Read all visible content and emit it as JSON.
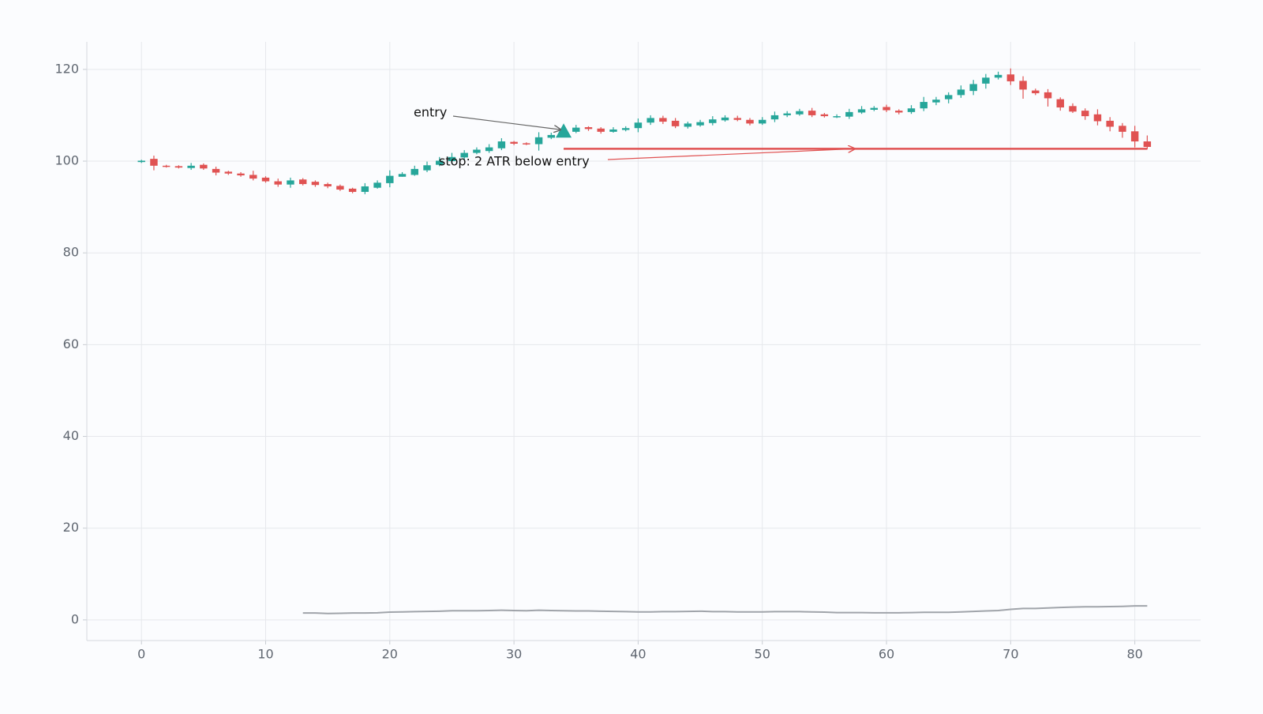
{
  "chart_data": {
    "type": "candlestick",
    "x": [
      0,
      1,
      2,
      3,
      4,
      5,
      6,
      7,
      8,
      9,
      10,
      11,
      12,
      13,
      14,
      15,
      16,
      17,
      18,
      19,
      20,
      21,
      22,
      23,
      24,
      25,
      26,
      27,
      28,
      29,
      30,
      31,
      32,
      33,
      34,
      35,
      36,
      37,
      38,
      39,
      40,
      41,
      42,
      43,
      44,
      45,
      46,
      47,
      48,
      49,
      50,
      51,
      52,
      53,
      54,
      55,
      56,
      57,
      58,
      59,
      60,
      61,
      62,
      63,
      64,
      65,
      66,
      67,
      68,
      69,
      70,
      71,
      72,
      73,
      74,
      75,
      76,
      77,
      78,
      79,
      80,
      81
    ],
    "open": [
      99.8,
      100.5,
      99.0,
      98.9,
      98.5,
      99.2,
      98.3,
      97.7,
      97.3,
      97.0,
      96.4,
      95.6,
      94.9,
      96.0,
      95.5,
      95.0,
      94.6,
      94.0,
      93.3,
      94.2,
      95.2,
      96.6,
      97.0,
      98.0,
      99.2,
      100.0,
      100.8,
      101.8,
      102.2,
      102.8,
      104.2,
      103.9,
      103.7,
      105.1,
      105.8,
      106.4,
      107.4,
      107.1,
      106.4,
      106.8,
      107.2,
      108.4,
      109.4,
      108.8,
      107.5,
      107.8,
      108.3,
      108.9,
      109.4,
      109.0,
      108.2,
      109.1,
      110.0,
      110.2,
      111.0,
      110.2,
      109.6,
      109.7,
      110.6,
      111.2,
      111.8,
      111.0,
      110.7,
      111.5,
      112.8,
      113.5,
      114.4,
      115.3,
      116.9,
      118.2,
      118.9,
      117.5,
      115.4,
      115.0,
      113.5,
      112.0,
      111.0,
      110.2,
      108.8,
      107.7,
      106.5,
      104.3
    ],
    "high": [
      100.3,
      101.2,
      99.2,
      99.1,
      99.6,
      99.5,
      98.8,
      97.9,
      97.6,
      97.9,
      96.7,
      96.2,
      96.4,
      96.3,
      95.8,
      95.3,
      94.9,
      94.2,
      95.2,
      95.8,
      98.0,
      97.6,
      99.0,
      99.9,
      100.9,
      101.8,
      102.4,
      103.0,
      103.7,
      105.0,
      104.4,
      104.1,
      106.3,
      106.2,
      107.2,
      107.9,
      107.6,
      107.4,
      107.4,
      107.6,
      109.3,
      110.0,
      109.9,
      109.4,
      108.6,
      109.0,
      109.8,
      110.0,
      109.9,
      109.4,
      109.6,
      110.8,
      110.9,
      111.4,
      111.6,
      110.5,
      110.2,
      111.4,
      112.0,
      112.0,
      112.3,
      111.3,
      112.2,
      114.0,
      114.0,
      115.0,
      116.5,
      117.7,
      119.0,
      119.5,
      120.2,
      118.5,
      115.8,
      115.7,
      113.9,
      112.6,
      111.5,
      111.3,
      109.6,
      108.3,
      107.7,
      105.6
    ],
    "low": [
      99.6,
      98.0,
      98.6,
      98.4,
      98.1,
      98.1,
      96.9,
      97.0,
      96.6,
      95.8,
      95.3,
      94.4,
      94.2,
      94.7,
      94.4,
      94.1,
      93.5,
      93.0,
      92.8,
      94.0,
      94.3,
      96.6,
      96.8,
      97.6,
      98.9,
      99.6,
      100.4,
      101.5,
      101.8,
      102.4,
      103.5,
      103.5,
      102.3,
      104.8,
      105.5,
      106.1,
      106.6,
      106.0,
      106.2,
      106.5,
      106.3,
      107.9,
      108.1,
      107.2,
      107.1,
      107.5,
      107.8,
      108.6,
      108.7,
      107.8,
      107.9,
      108.5,
      109.6,
      109.9,
      109.6,
      109.5,
      109.4,
      109.2,
      110.3,
      110.9,
      110.7,
      110.2,
      110.3,
      110.9,
      112.2,
      112.6,
      113.8,
      114.4,
      115.8,
      117.8,
      116.6,
      113.6,
      114.4,
      111.9,
      111.0,
      110.5,
      109.0,
      107.8,
      106.5,
      105.1,
      103.0,
      102.6
    ],
    "close": [
      100.1,
      99.0,
      98.8,
      98.6,
      99.0,
      98.4,
      97.5,
      97.3,
      96.9,
      96.2,
      95.6,
      94.9,
      95.8,
      95.0,
      94.8,
      94.5,
      93.8,
      93.3,
      94.5,
      95.3,
      96.8,
      97.2,
      98.3,
      99.1,
      100.1,
      100.9,
      101.8,
      102.5,
      103.0,
      104.3,
      103.8,
      103.7,
      105.2,
      105.7,
      106.6,
      107.3,
      107.0,
      106.4,
      106.9,
      107.2,
      108.4,
      109.4,
      108.6,
      107.6,
      108.2,
      108.5,
      109.1,
      109.5,
      109.0,
      108.2,
      109.0,
      110.0,
      110.4,
      110.9,
      110.0,
      109.8,
      109.8,
      110.7,
      111.3,
      111.6,
      111.1,
      110.6,
      111.5,
      112.9,
      113.4,
      114.4,
      115.6,
      116.8,
      118.2,
      118.8,
      117.4,
      115.6,
      114.8,
      113.7,
      111.7,
      110.8,
      109.8,
      108.7,
      107.5,
      106.4,
      104.3,
      103.1
    ],
    "up_color": "#26a69a",
    "down_color": "#e05252",
    "atr": {
      "color": "#a0a4aa",
      "x": [
        13,
        14,
        15,
        16,
        17,
        18,
        19,
        20,
        21,
        22,
        23,
        24,
        25,
        26,
        27,
        28,
        29,
        30,
        31,
        32,
        33,
        34,
        35,
        36,
        37,
        38,
        39,
        40,
        41,
        42,
        43,
        44,
        45,
        46,
        47,
        48,
        49,
        50,
        51,
        52,
        53,
        54,
        55,
        56,
        57,
        58,
        59,
        60,
        61,
        62,
        63,
        64,
        65,
        66,
        67,
        68,
        69,
        70,
        71,
        72,
        73,
        74,
        75,
        76,
        77,
        78,
        79,
        80,
        81
      ],
      "values": [
        1.5,
        1.5,
        1.4,
        1.45,
        1.5,
        1.5,
        1.55,
        1.7,
        1.75,
        1.8,
        1.85,
        1.9,
        2.0,
        2.0,
        2.0,
        2.05,
        2.1,
        2.05,
        2.0,
        2.1,
        2.05,
        2.0,
        1.95,
        1.95,
        1.9,
        1.85,
        1.8,
        1.75,
        1.75,
        1.8,
        1.8,
        1.85,
        1.9,
        1.8,
        1.8,
        1.75,
        1.75,
        1.75,
        1.8,
        1.8,
        1.8,
        1.75,
        1.7,
        1.6,
        1.6,
        1.6,
        1.55,
        1.55,
        1.55,
        1.6,
        1.65,
        1.65,
        1.65,
        1.75,
        1.85,
        1.95,
        2.05,
        2.3,
        2.5,
        2.5,
        2.6,
        2.7,
        2.8,
        2.85,
        2.85,
        2.9,
        2.95,
        3.05,
        3.05
      ]
    },
    "entry": {
      "label": "entry",
      "x": 34,
      "y": 106.5,
      "color": "#26a69a"
    },
    "stop": {
      "label": "stop: 2 ATR below entry",
      "x": [
        34,
        81
      ],
      "y": 102.7,
      "color": "#e05252"
    },
    "xlim": [
      -4.4,
      85.3
    ],
    "ylim": [
      -4.5,
      126
    ],
    "xticks": [
      0,
      10,
      20,
      30,
      40,
      50,
      60,
      70,
      80
    ],
    "yticks": [
      0,
      20,
      40,
      60,
      80,
      100,
      120
    ],
    "grid": true
  }
}
